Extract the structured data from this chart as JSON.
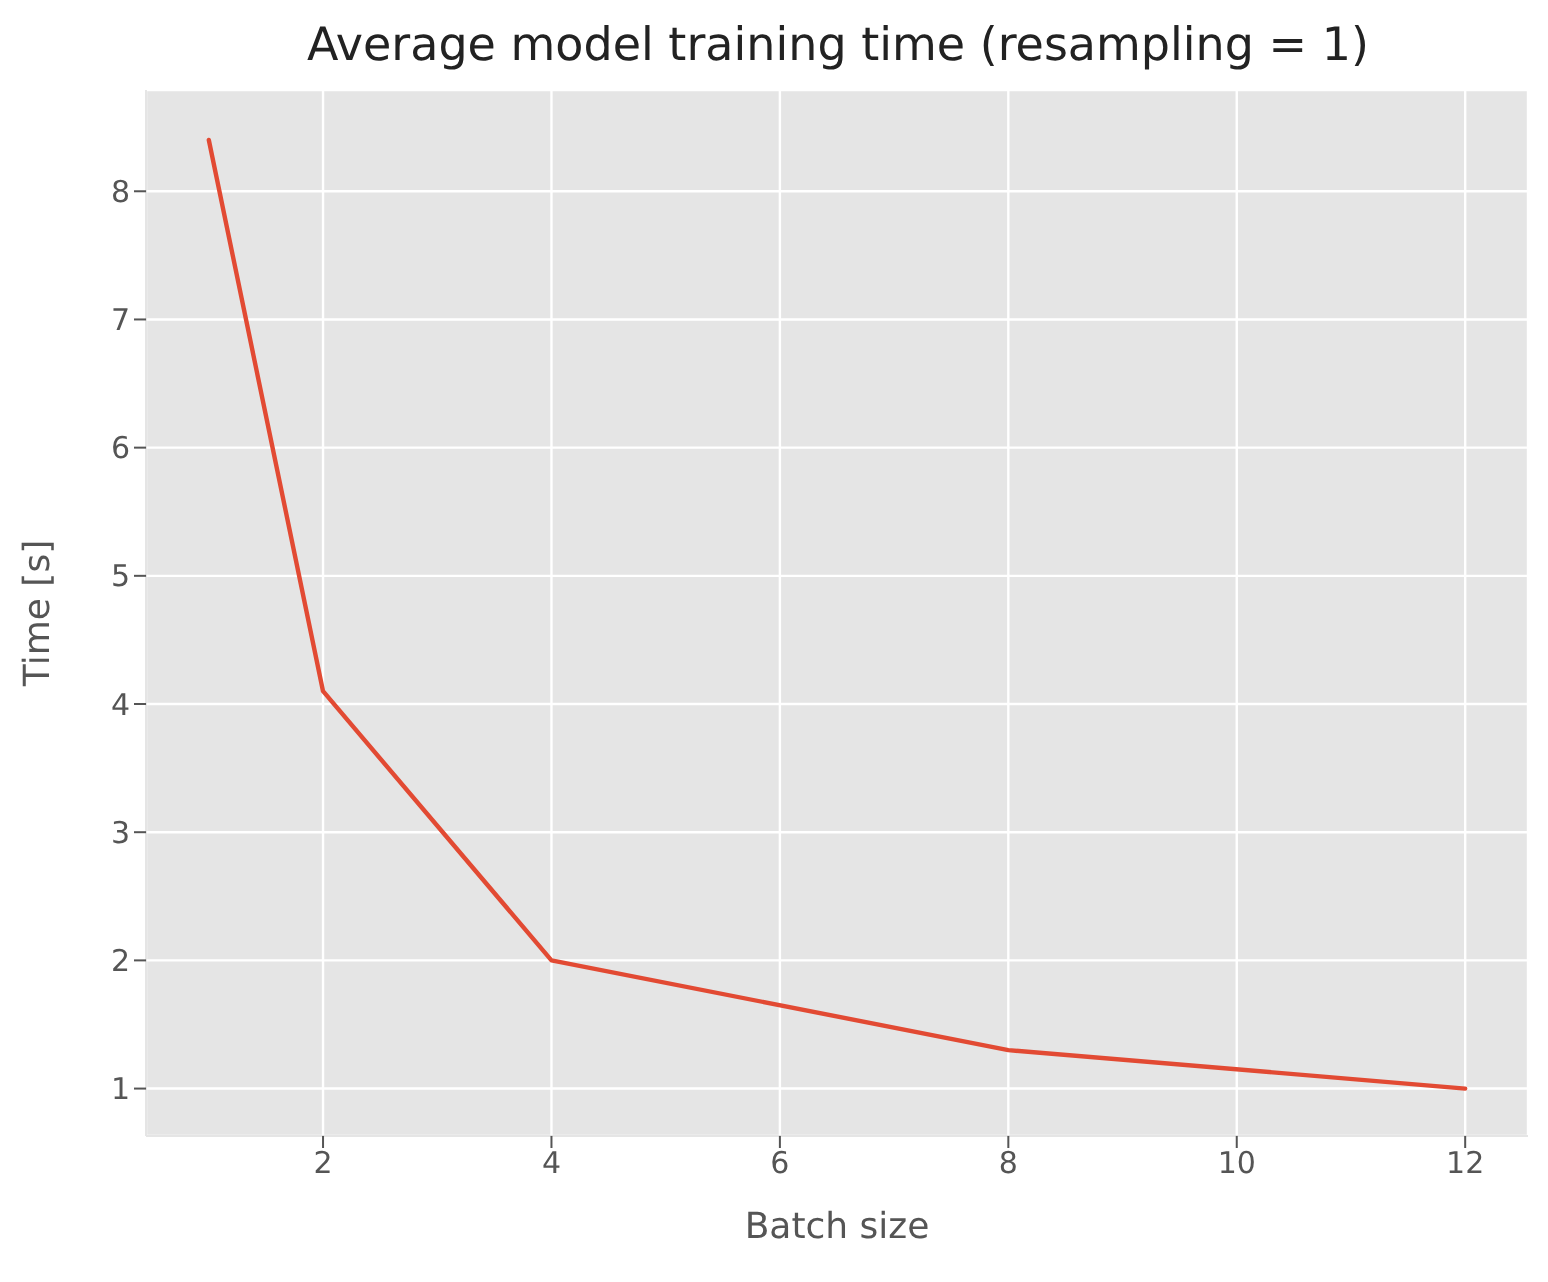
{
  "chart_data": {
    "type": "line",
    "title": "Average model training time (resampling = 1)",
    "xlabel": "Batch size",
    "ylabel": "Time [s]",
    "x": [
      1,
      2,
      4,
      8,
      12
    ],
    "series": [
      {
        "color": "#e24a33",
        "values": [
          8.4,
          4.1,
          2.0,
          1.3,
          1.0
        ]
      }
    ],
    "xlim": [
      0.45,
      12.55
    ],
    "xticks": [
      2,
      4,
      6,
      8,
      10,
      12
    ],
    "ylim": [
      0.63,
      8.79
    ],
    "yticks": [
      1,
      2,
      3,
      4,
      5,
      6,
      7,
      8
    ],
    "grid": true,
    "legend": false,
    "marker": "none",
    "line_style": "solid"
  }
}
